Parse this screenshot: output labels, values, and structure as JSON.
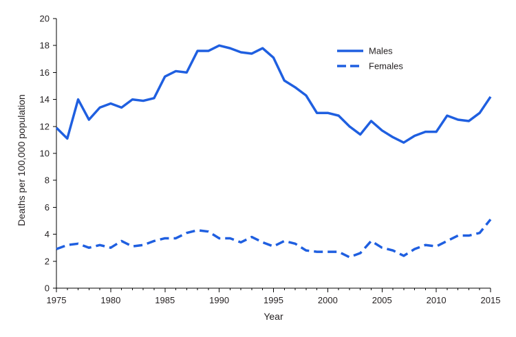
{
  "chart_data": {
    "type": "line",
    "title": "",
    "xlabel": "Year",
    "ylabel": "Deaths per 100,000 population",
    "xlim": [
      1975,
      2015
    ],
    "ylim": [
      0,
      20
    ],
    "x_ticks": [
      1975,
      1980,
      1985,
      1990,
      1995,
      2000,
      2005,
      2010,
      2015
    ],
    "y_ticks": [
      0,
      2,
      4,
      6,
      8,
      10,
      12,
      14,
      16,
      18,
      20
    ],
    "grid": false,
    "legend_position": "top-right",
    "x": [
      1975,
      1976,
      1977,
      1978,
      1979,
      1980,
      1981,
      1982,
      1983,
      1984,
      1985,
      1986,
      1987,
      1988,
      1989,
      1990,
      1991,
      1992,
      1993,
      1994,
      1995,
      1996,
      1997,
      1998,
      1999,
      2000,
      2001,
      2002,
      2003,
      2004,
      2005,
      2006,
      2007,
      2008,
      2009,
      2010,
      2011,
      2012,
      2013,
      2014,
      2015
    ],
    "series": [
      {
        "name": "Males",
        "style": "solid",
        "color": "#1f5fe0",
        "values": [
          11.9,
          11.1,
          14.0,
          12.5,
          13.4,
          13.7,
          13.4,
          14.0,
          13.9,
          14.1,
          15.7,
          16.1,
          16.0,
          17.6,
          17.6,
          18.0,
          17.8,
          17.5,
          17.4,
          17.8,
          17.1,
          15.4,
          14.9,
          14.3,
          13.0,
          13.0,
          12.8,
          12.0,
          11.4,
          12.4,
          11.7,
          11.2,
          10.8,
          11.3,
          11.6,
          11.6,
          12.8,
          12.5,
          12.4,
          13.0,
          14.2
        ]
      },
      {
        "name": "Females",
        "style": "dashed",
        "color": "#1f5fe0",
        "values": [
          2.9,
          3.2,
          3.3,
          3.0,
          3.2,
          3.0,
          3.5,
          3.1,
          3.2,
          3.5,
          3.7,
          3.7,
          4.1,
          4.3,
          4.2,
          3.7,
          3.7,
          3.4,
          3.8,
          3.4,
          3.1,
          3.5,
          3.3,
          2.8,
          2.7,
          2.7,
          2.7,
          2.3,
          2.6,
          3.5,
          3.0,
          2.8,
          2.4,
          2.9,
          3.2,
          3.1,
          3.5,
          3.9,
          3.9,
          4.1,
          5.1
        ]
      }
    ]
  }
}
